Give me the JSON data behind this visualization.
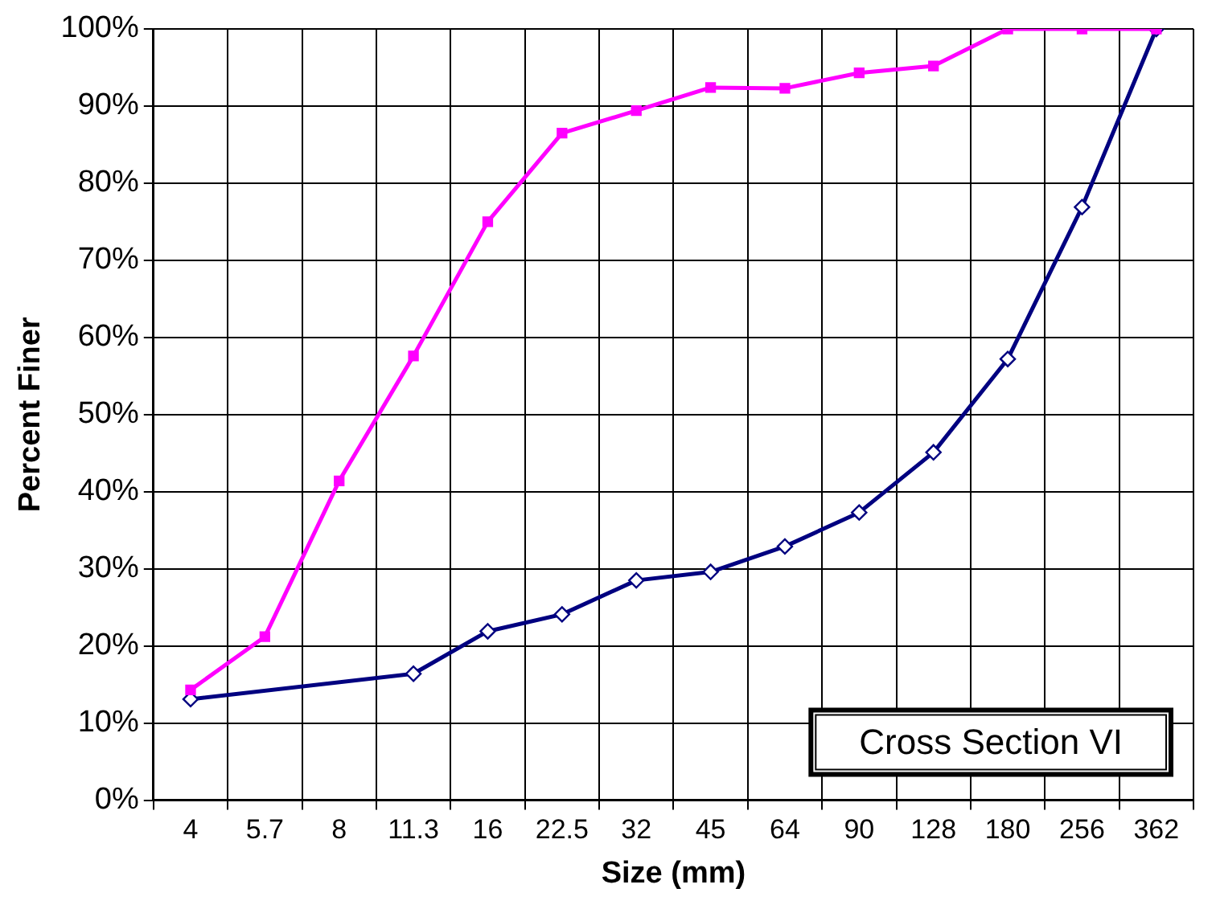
{
  "chart_data": {
    "type": "line",
    "xlabel": "Size (mm)",
    "ylabel": "Percent Finer",
    "annotations": [
      "Cross Section VI"
    ],
    "categories": [
      "4",
      "5.7",
      "8",
      "11.3",
      "16",
      "22.5",
      "32",
      "45",
      "64",
      "90",
      "128",
      "180",
      "256",
      "362"
    ],
    "series": [
      {
        "color": "#ff00ff",
        "marker": "square",
        "values": [
          14.3,
          21.2,
          41.4,
          57.6,
          75.0,
          86.5,
          89.4,
          92.4,
          92.3,
          94.3,
          95.2,
          100,
          100,
          100
        ]
      },
      {
        "color": "#000080",
        "marker": "diamond",
        "values": [
          13.1,
          null,
          null,
          16.4,
          21.9,
          24.1,
          28.5,
          29.6,
          32.9,
          37.3,
          45.1,
          57.2,
          76.9,
          100
        ]
      }
    ],
    "ylim": [
      0,
      100
    ],
    "yticks": [
      {
        "value": 0,
        "label": "0%"
      },
      {
        "value": 10,
        "label": "10%"
      },
      {
        "value": 20,
        "label": "20%"
      },
      {
        "value": 30,
        "label": "30%"
      },
      {
        "value": 40,
        "label": "40%"
      },
      {
        "value": 50,
        "label": "50%"
      },
      {
        "value": 60,
        "label": "60%"
      },
      {
        "value": 70,
        "label": "70%"
      },
      {
        "value": 80,
        "label": "80%"
      },
      {
        "value": 90,
        "label": "90%"
      },
      {
        "value": 100,
        "label": "100%"
      }
    ],
    "grid": true,
    "legend": false
  }
}
